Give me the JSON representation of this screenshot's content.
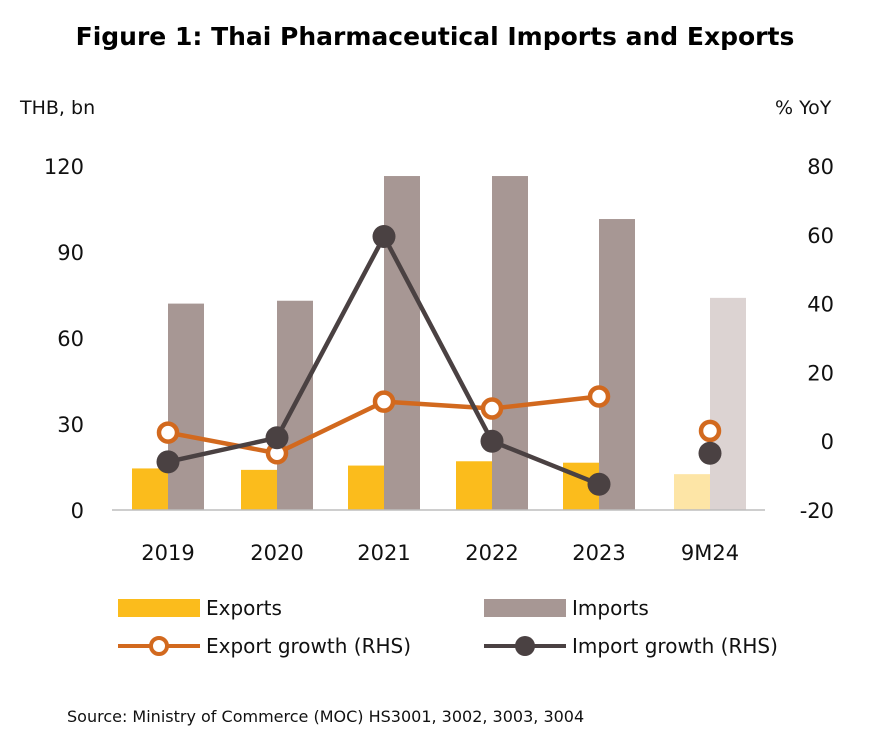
{
  "title": "Figure 1: Thai Pharmaceutical Imports and Exports",
  "source": "Source: Ministry of Commerce (MOC) HS3001, 3002, 3003, 3004",
  "chart_data": {
    "type": "bar",
    "title": "Figure 1: Thai Pharmaceutical Imports and Exports",
    "categories": [
      "2019",
      "2020",
      "2021",
      "2022",
      "2023",
      "9M24"
    ],
    "y_left_label": "THB, bn",
    "y_right_label": "% YoY",
    "ylim_left": [
      0,
      120
    ],
    "ylim_right": [
      -20,
      80
    ],
    "yticks_left": [
      "0",
      "30",
      "60",
      "90",
      "120"
    ],
    "yticks_right": [
      "-20",
      "0",
      "20",
      "40",
      "60",
      "80"
    ],
    "grid": false,
    "legend_position": "bottom",
    "series": [
      {
        "name": "Exports",
        "type": "bar",
        "axis": "left",
        "color": "#FBBC1C",
        "values": [
          14.5,
          14,
          15.5,
          17,
          16.5,
          12.5
        ]
      },
      {
        "name": "Imports",
        "type": "bar",
        "axis": "left",
        "color": "#A79794",
        "values": [
          72,
          73,
          116.5,
          116.5,
          101.5,
          74
        ]
      },
      {
        "name": "Export growth (RHS)",
        "type": "line",
        "axis": "right",
        "color": "#D2691E",
        "values": [
          2.5,
          -3.5,
          11.5,
          9.5,
          13,
          3
        ]
      },
      {
        "name": "Import growth (RHS)",
        "type": "line",
        "axis": "right",
        "color": "#4A4142",
        "values": [
          -6,
          1,
          59.5,
          0,
          -12.5,
          -3.5
        ]
      }
    ],
    "faded_category": "9M24",
    "faded_colors": {
      "Exports": "#FDE5A6",
      "Imports": "#DCD3D2"
    }
  }
}
